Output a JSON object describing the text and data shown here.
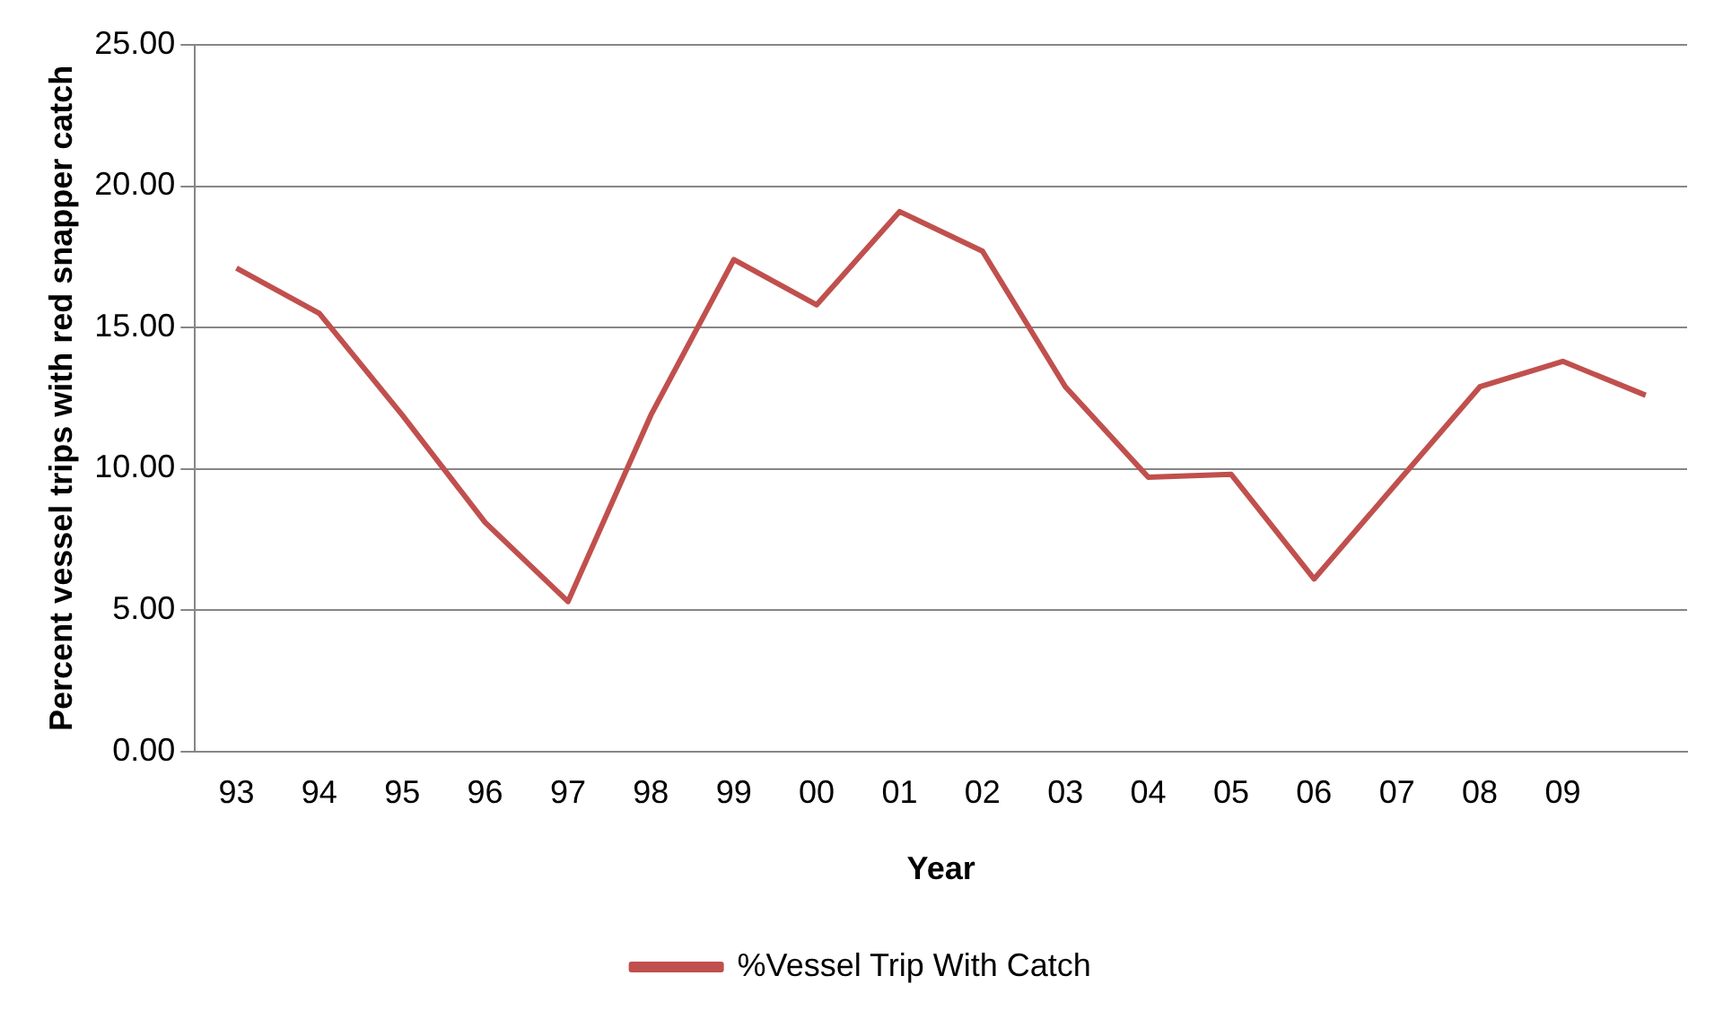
{
  "chart_data": {
    "type": "line",
    "xlabel": "Year",
    "ylabel": "Percent vessel trips with red snapper catch",
    "categories": [
      "93",
      "94",
      "95",
      "96",
      "97",
      "98",
      "99",
      "00",
      "01",
      "02",
      "03",
      "04",
      "05",
      "06",
      "07",
      "08",
      "09",
      null
    ],
    "series": [
      {
        "name": "%Vessel Trip With Catch",
        "color": "#c0504d",
        "values": [
          17.1,
          15.5,
          11.9,
          8.1,
          5.3,
          11.9,
          17.4,
          15.8,
          19.1,
          17.7,
          12.9,
          9.7,
          9.8,
          6.1,
          9.5,
          12.9,
          13.8,
          12.6
        ]
      }
    ],
    "ylim": [
      0,
      25
    ],
    "yticks": [
      {
        "value": 0,
        "label": "0.00"
      },
      {
        "value": 5,
        "label": "5.00"
      },
      {
        "value": 10,
        "label": "10.00"
      },
      {
        "value": 15,
        "label": "15.00"
      },
      {
        "value": 20,
        "label": "20.00"
      },
      {
        "value": 25,
        "label": "25.00"
      }
    ],
    "grid": "y",
    "legend": "bottom",
    "marker": "none",
    "line_style": "solid"
  }
}
